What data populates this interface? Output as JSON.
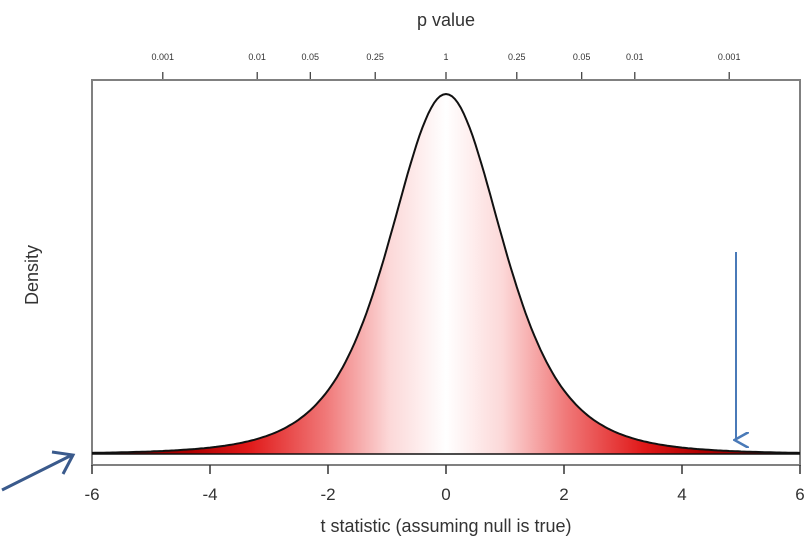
{
  "chart_data": {
    "type": "area",
    "distribution": "Student t (heavy tails)",
    "xlabel": "t statistic (assuming null is true)",
    "ylabel": "Density",
    "top_axis_label": "p value",
    "xlim": [
      -6,
      6
    ],
    "x_ticks": [
      -6,
      -4,
      -2,
      0,
      2,
      4,
      6
    ],
    "x_tick_labels": [
      "-6",
      "-4",
      "-2",
      "0",
      "2",
      "4",
      "6"
    ],
    "top_ticks": [
      {
        "t": -4.8,
        "label": "0.001"
      },
      {
        "t": -3.2,
        "label": "0.01"
      },
      {
        "t": -2.3,
        "label": "0.05"
      },
      {
        "t": -1.2,
        "label": "0.25"
      },
      {
        "t": 0,
        "label": "1"
      },
      {
        "t": 1.2,
        "label": "0.25"
      },
      {
        "t": 2.3,
        "label": "0.05"
      },
      {
        "t": 3.2,
        "label": "0.01"
      },
      {
        "t": 4.8,
        "label": "0.001"
      }
    ],
    "curve": {
      "x": [
        -6,
        -5,
        -4,
        -3.5,
        -3,
        -2.5,
        -2,
        -1.5,
        -1,
        -0.5,
        0,
        0.5,
        1,
        1.5,
        2,
        2.5,
        3,
        3.5,
        4,
        5,
        6
      ],
      "density": [
        0.001,
        0.003,
        0.007,
        0.012,
        0.022,
        0.04,
        0.08,
        0.15,
        0.26,
        0.37,
        0.41,
        0.37,
        0.26,
        0.15,
        0.08,
        0.04,
        0.022,
        0.012,
        0.007,
        0.003,
        0.001
      ]
    },
    "fill": "gradient: white at t=0 to red/dark red in the tails",
    "annotations": [
      {
        "type": "vertical-arrow",
        "at_t": 5,
        "direction": "down",
        "color": "#4a7ab8"
      },
      {
        "type": "outside-arrow",
        "points_to": "t=-6 baseline",
        "color": "#3a5a8c"
      }
    ],
    "colors": {
      "curve": "#111111",
      "fill_center": "#ffffff",
      "fill_mid": "#f0a0a0",
      "fill_tail": "#e02020",
      "fill_far_tail": "#8a0000",
      "frame": "#808080",
      "annotation_arrow": "#4a7ab8",
      "outside_arrow": "#3a5a8c"
    }
  }
}
